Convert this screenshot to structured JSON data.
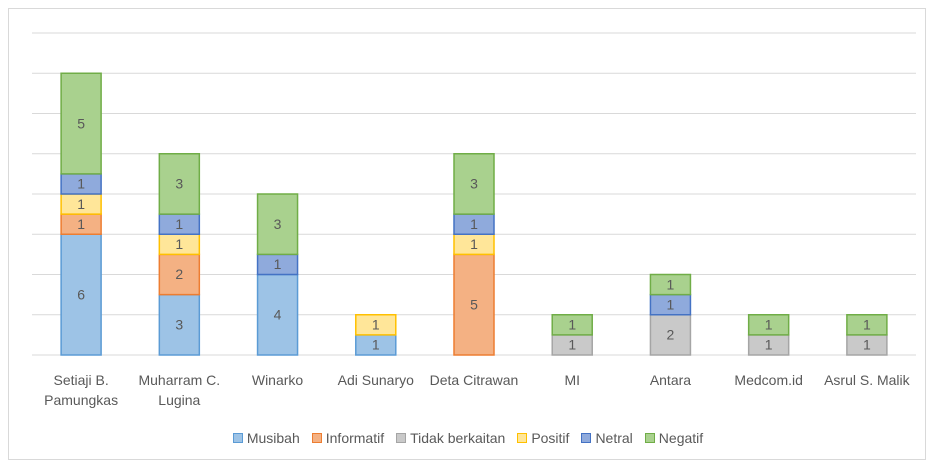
{
  "chart_data": {
    "type": "stacked_bar",
    "categories": [
      "Setiaji B. Pamungkas",
      "Muharram C. Lugina",
      "Winarko",
      "Adi Sunaryo",
      "Deta Citrawan",
      "MI",
      "Antara",
      "Medcom.id",
      "Asrul S. Malik"
    ],
    "series": [
      {
        "name": "Musibah",
        "color": "#9dc3e6",
        "stroke": "#5b9bd5",
        "values": [
          6,
          3,
          4,
          1,
          null,
          null,
          null,
          null,
          null
        ]
      },
      {
        "name": "Informatif",
        "color": "#f4b183",
        "stroke": "#ed7d31",
        "values": [
          1,
          2,
          null,
          null,
          5,
          null,
          null,
          null,
          null
        ]
      },
      {
        "name": "Tidak berkaitan",
        "color": "#c9c9c9",
        "stroke": "#a5a5a5",
        "values": [
          null,
          null,
          null,
          null,
          null,
          1,
          2,
          1,
          1
        ]
      },
      {
        "name": "Positif",
        "color": "#ffe699",
        "stroke": "#ffc000",
        "values": [
          1,
          1,
          null,
          1,
          1,
          null,
          null,
          null,
          null
        ]
      },
      {
        "name": "Netral",
        "color": "#8faadc",
        "stroke": "#4472c4",
        "values": [
          1,
          1,
          1,
          null,
          1,
          null,
          1,
          null,
          null
        ]
      },
      {
        "name": "Negatif",
        "color": "#a9d18e",
        "stroke": "#70ad47",
        "values": [
          5,
          3,
          3,
          null,
          3,
          1,
          1,
          1,
          1
        ]
      }
    ],
    "ylim": [
      0,
      16
    ],
    "yticks": [
      0,
      2,
      4,
      6,
      8,
      10,
      12,
      14,
      16
    ],
    "grid": true,
    "legend": "bottom"
  }
}
